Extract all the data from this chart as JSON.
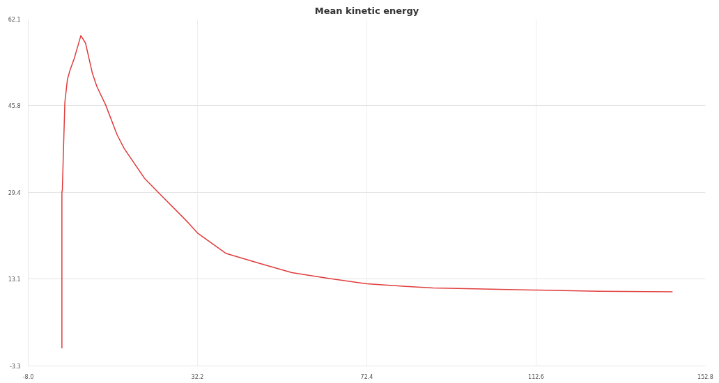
{
  "chart_data": {
    "type": "line",
    "title": "Mean kinetic energy",
    "xlim": [
      -8.0,
      152.8
    ],
    "xticks": [
      {
        "value": -8.0,
        "label": "-8.0"
      },
      32.2,
      72.4,
      112.6,
      152.8
    ],
    "ylim": [
      -3.3,
      62.1
    ],
    "yticks": [
      -3.3,
      13.1,
      29.4,
      45.8,
      62.1
    ],
    "grid": true,
    "marker": "none",
    "line_style": "solid",
    "series": [
      {
        "color": "#e03c3c",
        "x": [
          0,
          0,
          0.1,
          0.3,
          0.7,
          1.3,
          1.9,
          2.9,
          4.5,
          5.6,
          7.2,
          8.3,
          10.4,
          13.1,
          14.8,
          19.6,
          23.4,
          29.9,
          32.3,
          39.0,
          47.1,
          54.6,
          63.3,
          72.4,
          81.6,
          88.1,
          112.6,
          127.4,
          145.0
        ],
        "values": [
          0,
          29.5,
          29.8,
          35.5,
          46.4,
          50.7,
          52.4,
          54.6,
          59.0,
          57.6,
          52.0,
          49.4,
          45.9,
          40.3,
          37.7,
          32.1,
          29.0,
          23.8,
          21.7,
          17.9,
          16.0,
          14.3,
          13.2,
          12.2,
          11.7,
          11.4,
          11.0,
          10.8,
          10.7
        ]
      }
    ]
  }
}
